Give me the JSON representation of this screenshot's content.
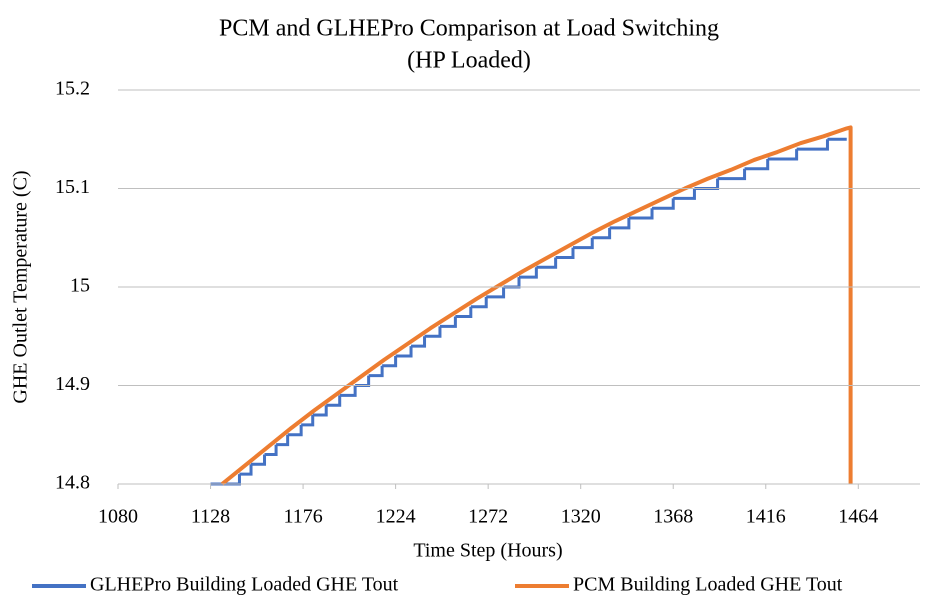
{
  "chart_data": {
    "type": "line",
    "title": [
      "PCM and GLHEPro Comparison at Load Switching",
      "(HP Loaded)"
    ],
    "xlabel": "Time Step (Hours)",
    "ylabel": "GHE Outlet Temperature (C)",
    "xlim": [
      1080,
      1496
    ],
    "xticks": [
      1080,
      1128,
      1176,
      1224,
      1272,
      1320,
      1368,
      1416,
      1464
    ],
    "ylim": [
      14.8,
      15.2
    ],
    "yticks": [
      {
        "value": 14.8,
        "label": "14.8"
      },
      14.9,
      15,
      15.1,
      15.2
    ],
    "grid": true,
    "legend": "bottom",
    "series": [
      {
        "name": "GLHEPro Building Loaded GHE Tout",
        "color": "#4472c4",
        "step": true,
        "x": [
          1128,
          1143,
          1149,
          1156,
          1162,
          1168,
          1175,
          1181,
          1188,
          1195,
          1203,
          1210,
          1217,
          1224,
          1232,
          1239,
          1247,
          1255,
          1263,
          1271,
          1280,
          1288,
          1297,
          1307,
          1316,
          1326,
          1335,
          1345,
          1357,
          1368,
          1379,
          1391,
          1405,
          1417,
          1432,
          1448,
          1458
        ],
        "values": [
          14.8,
          14.81,
          14.82,
          14.83,
          14.84,
          14.85,
          14.86,
          14.87,
          14.88,
          14.89,
          14.9,
          14.91,
          14.92,
          14.93,
          14.94,
          14.95,
          14.96,
          14.97,
          14.98,
          14.99,
          15.0,
          15.01,
          15.02,
          15.03,
          15.04,
          15.05,
          15.06,
          15.07,
          15.08,
          15.09,
          15.1,
          15.11,
          15.12,
          15.13,
          15.14,
          15.15,
          15.15
        ]
      },
      {
        "name": "PCM Building Loaded GHE Tout",
        "color": "#ed7d31",
        "step": false,
        "x": [
          1134,
          1146,
          1158,
          1170,
          1182,
          1194,
          1206,
          1218,
          1230,
          1242,
          1254,
          1266,
          1278,
          1290,
          1302,
          1314,
          1326,
          1338,
          1350,
          1362,
          1374,
          1386,
          1398,
          1410,
          1422,
          1434,
          1446,
          1458,
          1460,
          1460
        ],
        "values": [
          14.8,
          14.819,
          14.838,
          14.857,
          14.875,
          14.892,
          14.909,
          14.926,
          14.942,
          14.958,
          14.973,
          14.988,
          15.002,
          15.016,
          15.029,
          15.042,
          15.055,
          15.067,
          15.078,
          15.089,
          15.1,
          15.11,
          15.119,
          15.129,
          15.137,
          15.146,
          15.153,
          15.161,
          15.162,
          14.8
        ]
      }
    ]
  }
}
